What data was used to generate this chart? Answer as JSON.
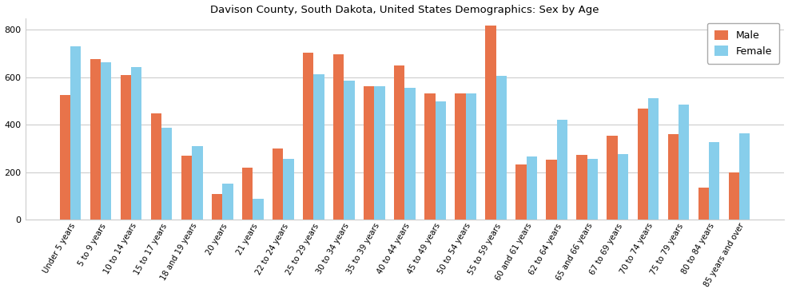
{
  "title": "Davison County, South Dakota, United States Demographics: Sex by Age",
  "categories": [
    "Under 5 years",
    "5 to 9 years",
    "10 to 14 years",
    "15 to 17 years",
    "18 and 19 years",
    "20 years",
    "21 years",
    "22 to 24 years",
    "25 to 29 years",
    "30 to 34 years",
    "35 to 39 years",
    "40 to 44 years",
    "45 to 49 years",
    "50 to 54 years",
    "55 to 59 years",
    "60 and 61 years",
    "62 to 64 years",
    "65 and 66 years",
    "67 to 69 years",
    "70 to 74 years",
    "75 to 79 years",
    "80 to 84 years",
    "85 years and over"
  ],
  "male": [
    527,
    678,
    608,
    447,
    270,
    110,
    218,
    300,
    704,
    696,
    563,
    649,
    532,
    532,
    818,
    232,
    253,
    275,
    353,
    467,
    361,
    136,
    200
  ],
  "female": [
    730,
    662,
    643,
    386,
    310,
    152,
    87,
    257,
    614,
    585,
    563,
    557,
    499,
    532,
    607,
    265,
    421,
    257,
    277,
    511,
    484,
    328,
    363
  ],
  "male_color": "#E8734A",
  "female_color": "#87CEEB",
  "bar_width": 0.35,
  "ylim": [
    0,
    850
  ],
  "yticks": [
    0,
    200,
    400,
    600,
    800
  ],
  "legend_labels": [
    "Male",
    "Female"
  ],
  "figsize": [
    9.87,
    3.67
  ],
  "dpi": 100
}
